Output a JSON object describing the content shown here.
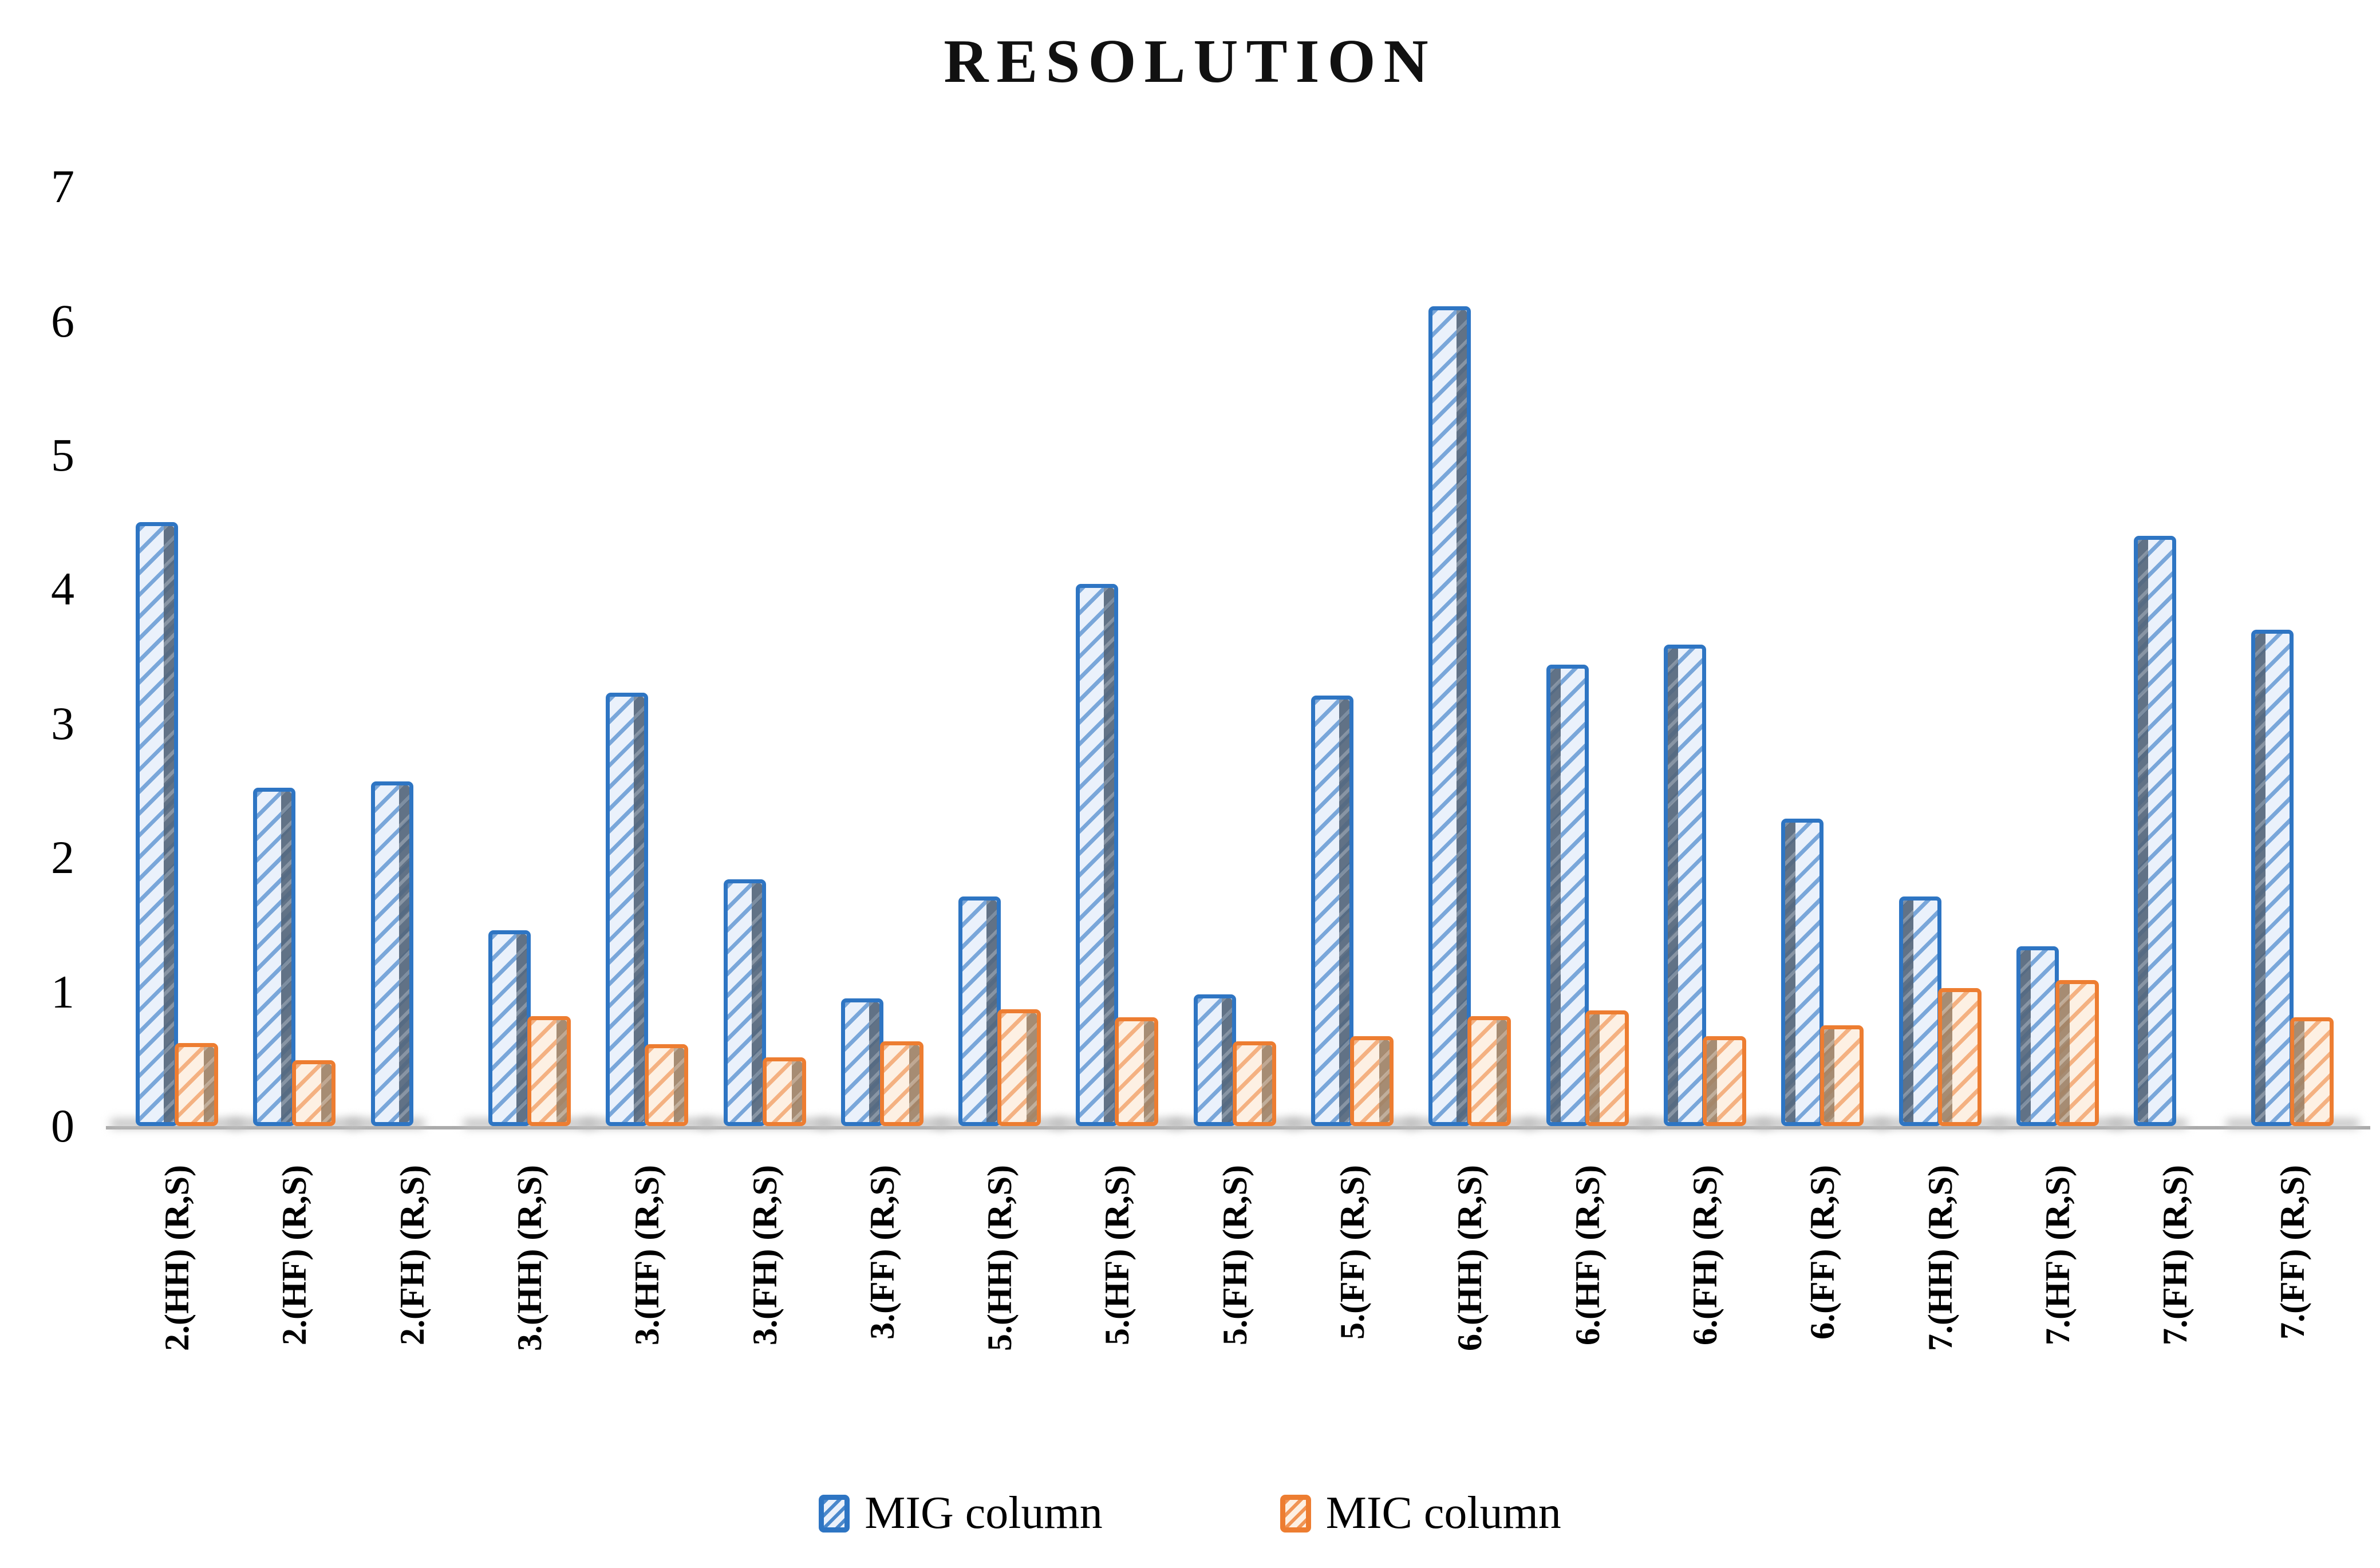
{
  "title": "RESOLUTION",
  "legend": {
    "items": [
      {
        "label": "MIG column",
        "series": "MIG"
      },
      {
        "label": "MIC column",
        "series": "MIC"
      }
    ]
  },
  "colors": {
    "mig_border": "#2E75C3",
    "mig_fill": "#EAF1FB",
    "mic_border": "#ED7D31",
    "mic_fill": "#FDF0E3",
    "axis_line": "#ABABAB",
    "text": "#000000"
  },
  "chart_data": {
    "type": "bar",
    "title": "RESOLUTION",
    "categories": [
      "2.(HH) (R,S)",
      "2.(HF) (R,S)",
      "2.(FH) (R,S)",
      "3.(HH) (R,S)",
      "3.(HF) (R,S)",
      "3.(FH) (R,S)",
      "3.(FF) (R,S)",
      "5.(HH) (R,S)",
      "5.(HF) (R,S)",
      "5.(FH) (R,S)",
      "5.(FF) (R,S)",
      "6.(HH) (R,S)",
      "6.(HF) (R,S)",
      "6.(FH) (R,S)",
      "6.(FF) (R,S)",
      "7.(HH) (R,S)",
      "7.(HF) (R,S)",
      "7.(FH) (R,S)",
      "7.(FF) (R,S)"
    ],
    "series": [
      {
        "name": "MIG column",
        "color": "#2E75C3",
        "values": [
          4.5,
          2.52,
          2.57,
          1.46,
          3.23,
          1.84,
          0.95,
          1.71,
          4.04,
          0.98,
          3.21,
          6.11,
          3.44,
          3.59,
          2.29,
          1.71,
          1.34,
          4.4,
          3.7
        ]
      },
      {
        "name": "MIC column",
        "color": "#ED7D31",
        "values": [
          0.62,
          0.49,
          0,
          0.82,
          0.61,
          0.51,
          0.63,
          0.87,
          0.81,
          0.63,
          0.67,
          0.82,
          0.86,
          0.67,
          0.75,
          1.03,
          1.09,
          0,
          0.81
        ]
      }
    ],
    "xlabel": "",
    "ylabel": "",
    "ylim": [
      0,
      7
    ],
    "yticks": [
      "0",
      "1",
      "2",
      "3",
      "4",
      "5",
      "6",
      "7"
    ],
    "grid": false,
    "legend_position": "bottom"
  }
}
